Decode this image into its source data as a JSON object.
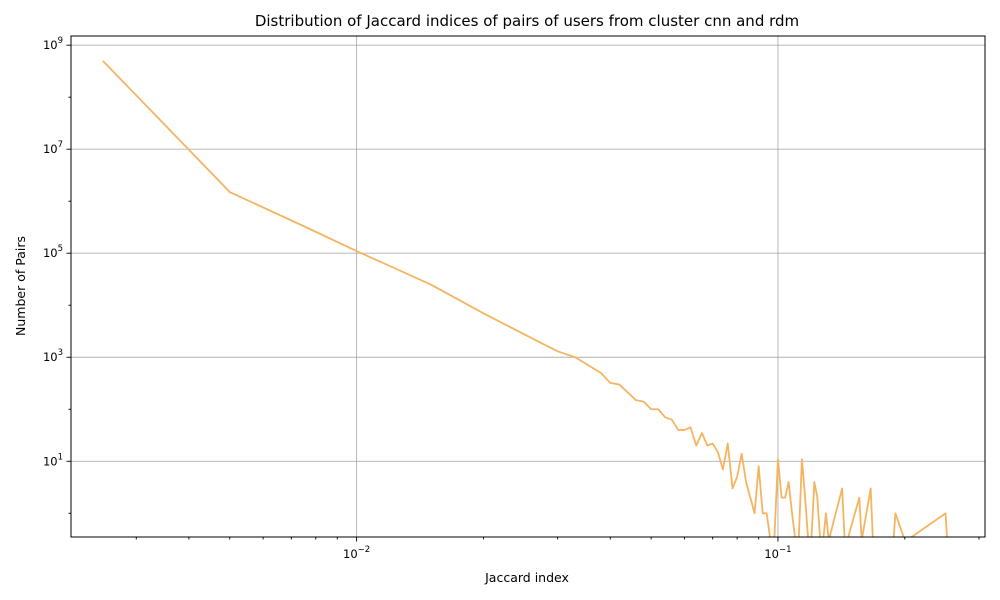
{
  "chart_data": {
    "type": "line",
    "title": "Distribution of Jaccard indices of pairs of users from cluster cnn and rdm",
    "xlabel": "Jaccard index",
    "ylabel": "Number of Pairs",
    "xscale": "log",
    "yscale": "log",
    "xlim": [
      0.0021,
      0.31
    ],
    "ylim": [
      0.35,
      1500000000
    ],
    "grid": true,
    "color": "#f5b461",
    "x_ticks": [
      {
        "value": 0.01,
        "base": "10",
        "exp": "−2"
      },
      {
        "value": 0.1,
        "base": "10",
        "exp": "−1"
      }
    ],
    "y_ticks": [
      {
        "value": 10,
        "base": "10",
        "exp": "1"
      },
      {
        "value": 1000,
        "base": "10",
        "exp": "3"
      },
      {
        "value": 100000,
        "base": "10",
        "exp": "5"
      },
      {
        "value": 10000000,
        "base": "10",
        "exp": "7"
      },
      {
        "value": 1000000000,
        "base": "10",
        "exp": "9"
      }
    ],
    "series": [
      {
        "x": [
          0.0025,
          0.005,
          0.0075,
          0.01,
          0.015,
          0.02,
          0.027,
          0.03,
          0.033,
          0.038,
          0.04,
          0.042,
          0.046,
          0.048,
          0.05,
          0.052,
          0.054,
          0.056,
          0.058,
          0.06,
          0.062,
          0.064,
          0.066,
          0.068,
          0.07,
          0.072,
          0.074,
          0.076,
          0.078,
          0.08,
          0.082,
          0.084,
          0.086,
          0.088,
          0.09,
          0.092,
          0.094,
          0.096,
          0.098,
          0.1,
          0.102,
          0.104,
          0.106,
          0.108,
          0.11,
          0.112,
          0.114,
          0.116,
          0.118,
          0.12,
          0.122,
          0.124,
          0.126,
          0.128,
          0.13,
          0.132,
          0.142,
          0.144,
          0.146,
          0.156,
          0.158,
          0.166,
          0.168,
          0.188,
          0.19,
          0.2,
          0.202,
          0.25,
          0.252
        ],
        "y": [
          500000000,
          1500000,
          330000,
          110000,
          25000,
          7000,
          2000,
          1300,
          1000,
          500,
          320,
          300,
          150,
          140,
          100,
          100,
          70,
          63,
          40,
          40,
          45,
          20,
          35,
          20,
          22,
          15,
          7,
          22,
          3,
          5,
          14,
          4,
          2,
          1,
          8,
          1,
          1,
          0.3,
          0.3,
          11,
          2,
          2,
          4,
          1,
          0.3,
          0.3,
          11,
          2,
          0.3,
          0.3,
          4,
          2,
          0.3,
          0.3,
          1,
          0.3,
          3,
          0.3,
          0.3,
          2,
          0.3,
          3,
          0.3,
          0.3,
          1,
          0.3,
          0.3,
          1,
          0.3
        ]
      }
    ]
  }
}
